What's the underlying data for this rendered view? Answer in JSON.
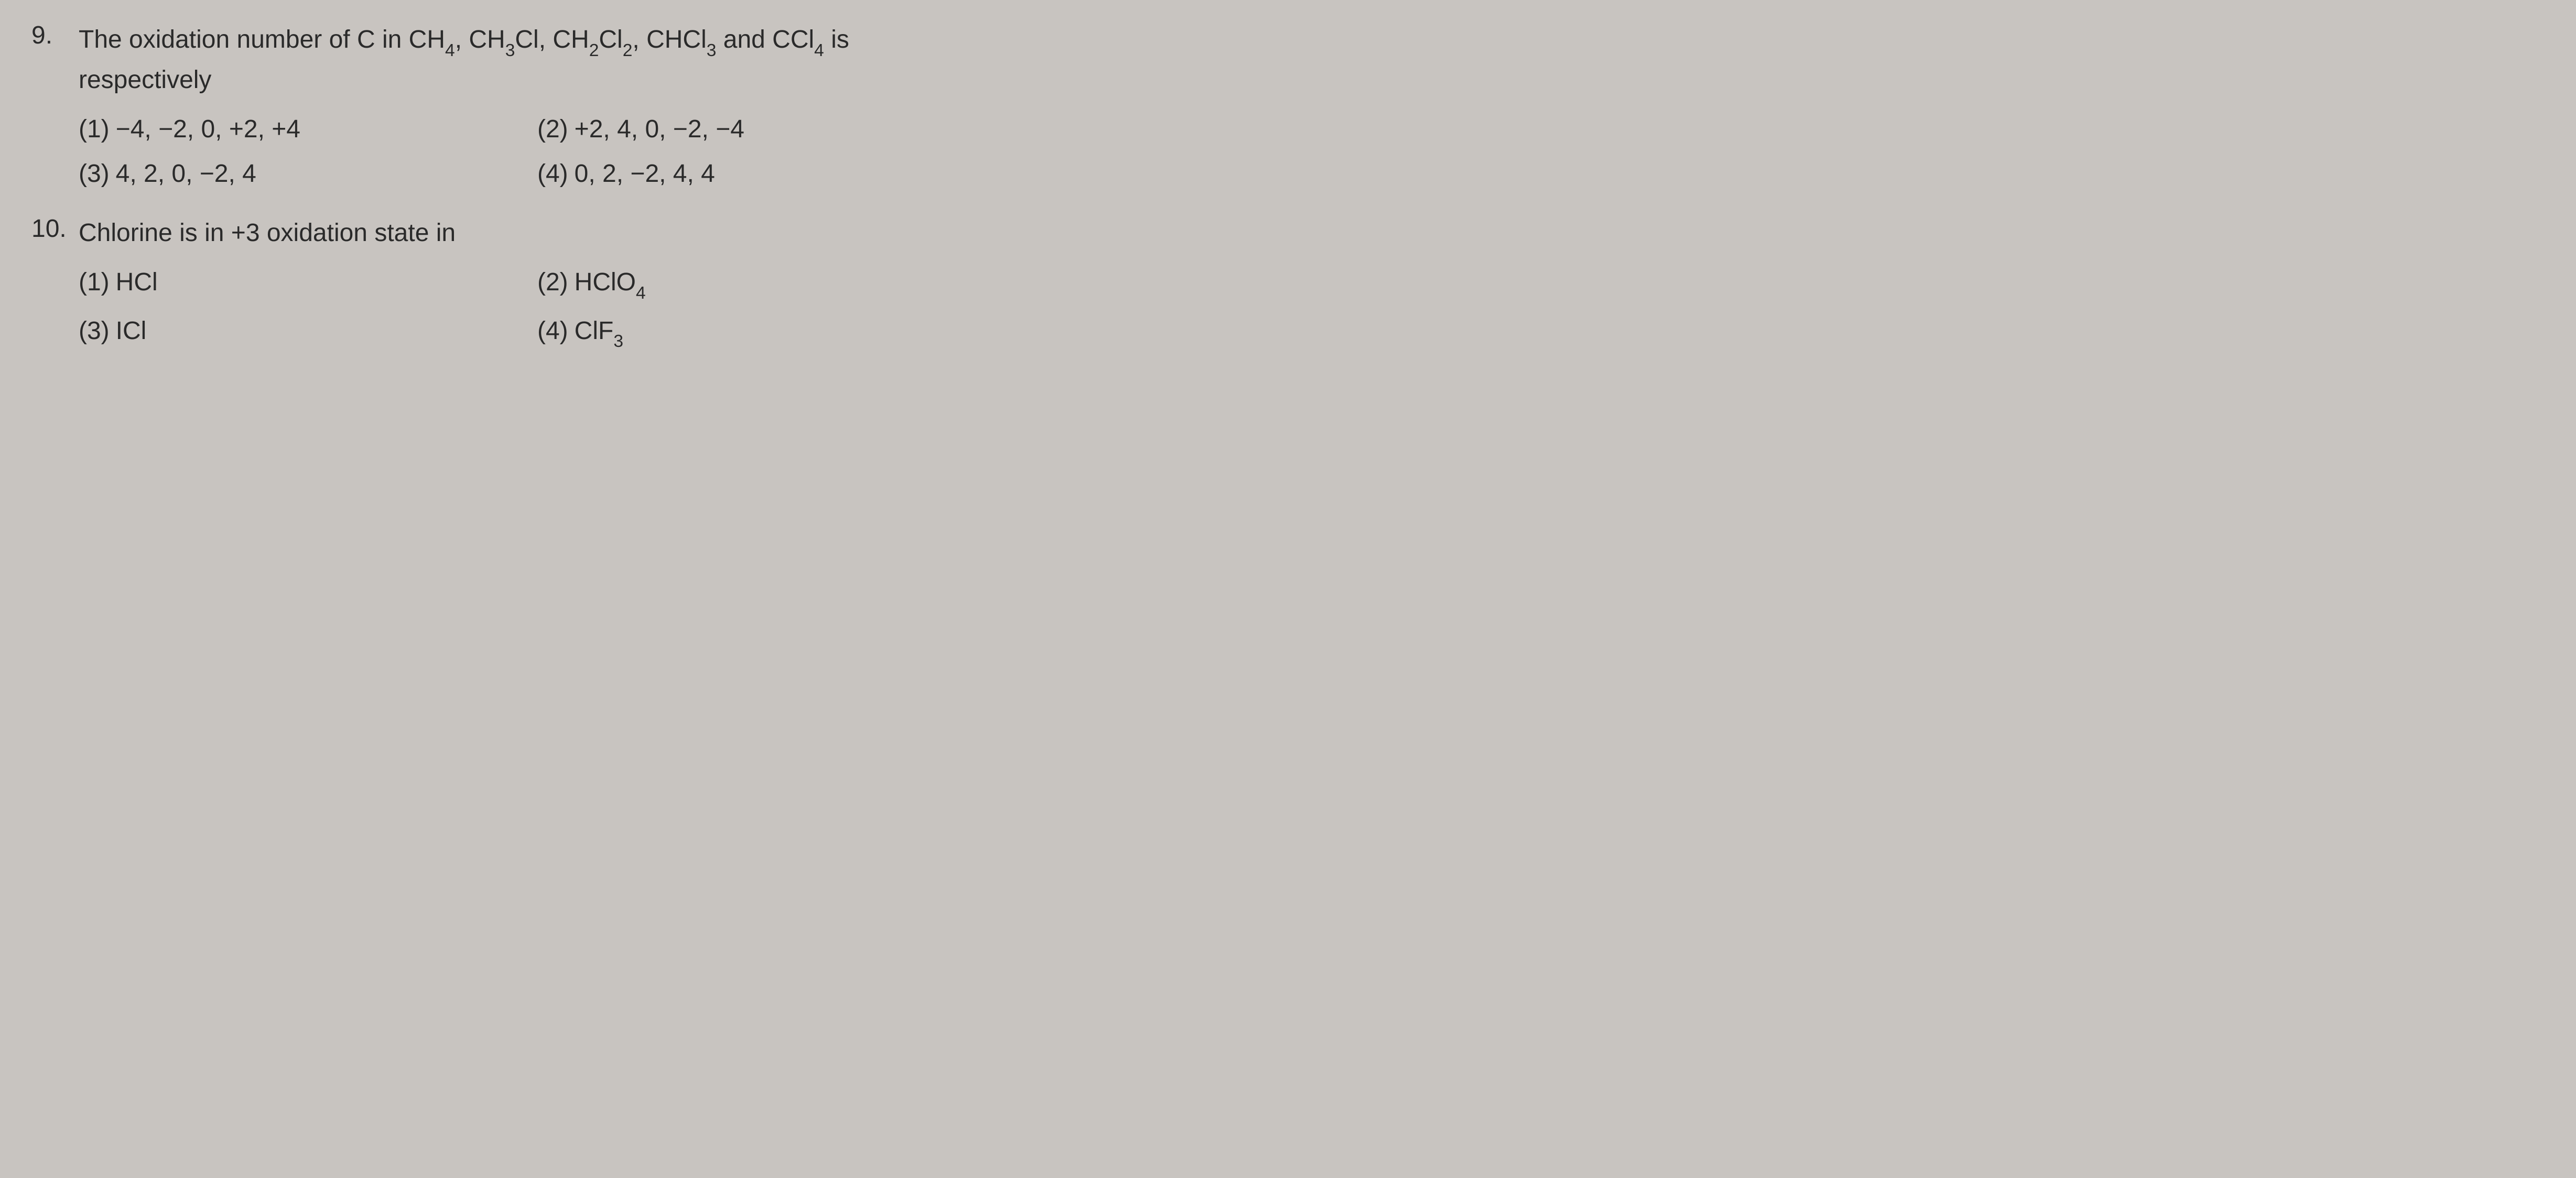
{
  "questions": [
    {
      "number": "9.",
      "text_parts": {
        "prefix": "The oxidation number of C in CH",
        "s1": "4",
        "t2": ", CH",
        "s2": "3",
        "t3": "Cl, CH",
        "s3": "2",
        "t4": "Cl",
        "s4": "2",
        "t5": ", CHCl",
        "s5": "3",
        "t6": " and CCl",
        "s6": "4",
        "suffix": " is respectively"
      },
      "options": [
        {
          "label": "(1)",
          "text": "−4, −2, 0, +2, +4"
        },
        {
          "label": "(2)",
          "text": "+2, 4, 0, −2, −4"
        },
        {
          "label": "(3)",
          "text": "4, 2, 0, −2, 4"
        },
        {
          "label": "(4)",
          "text": "0, 2, −2, 4, 4"
        }
      ]
    },
    {
      "number": "10.",
      "text": "Chlorine is in +3 oxidation state in",
      "options": [
        {
          "label": "(1)",
          "text": "HCl",
          "sub": ""
        },
        {
          "label": "(2)",
          "text": "HClO",
          "sub": "4"
        },
        {
          "label": "(3)",
          "text": "ICl",
          "sub": ""
        },
        {
          "label": "(4)",
          "text": "ClF",
          "sub": "3"
        }
      ]
    }
  ],
  "colors": {
    "background": "#c8c4c0",
    "text": "#2a2a2a"
  },
  "typography": {
    "font_family": "Arial, Helvetica, sans-serif",
    "question_fontsize": 48,
    "option_fontsize": 48
  }
}
